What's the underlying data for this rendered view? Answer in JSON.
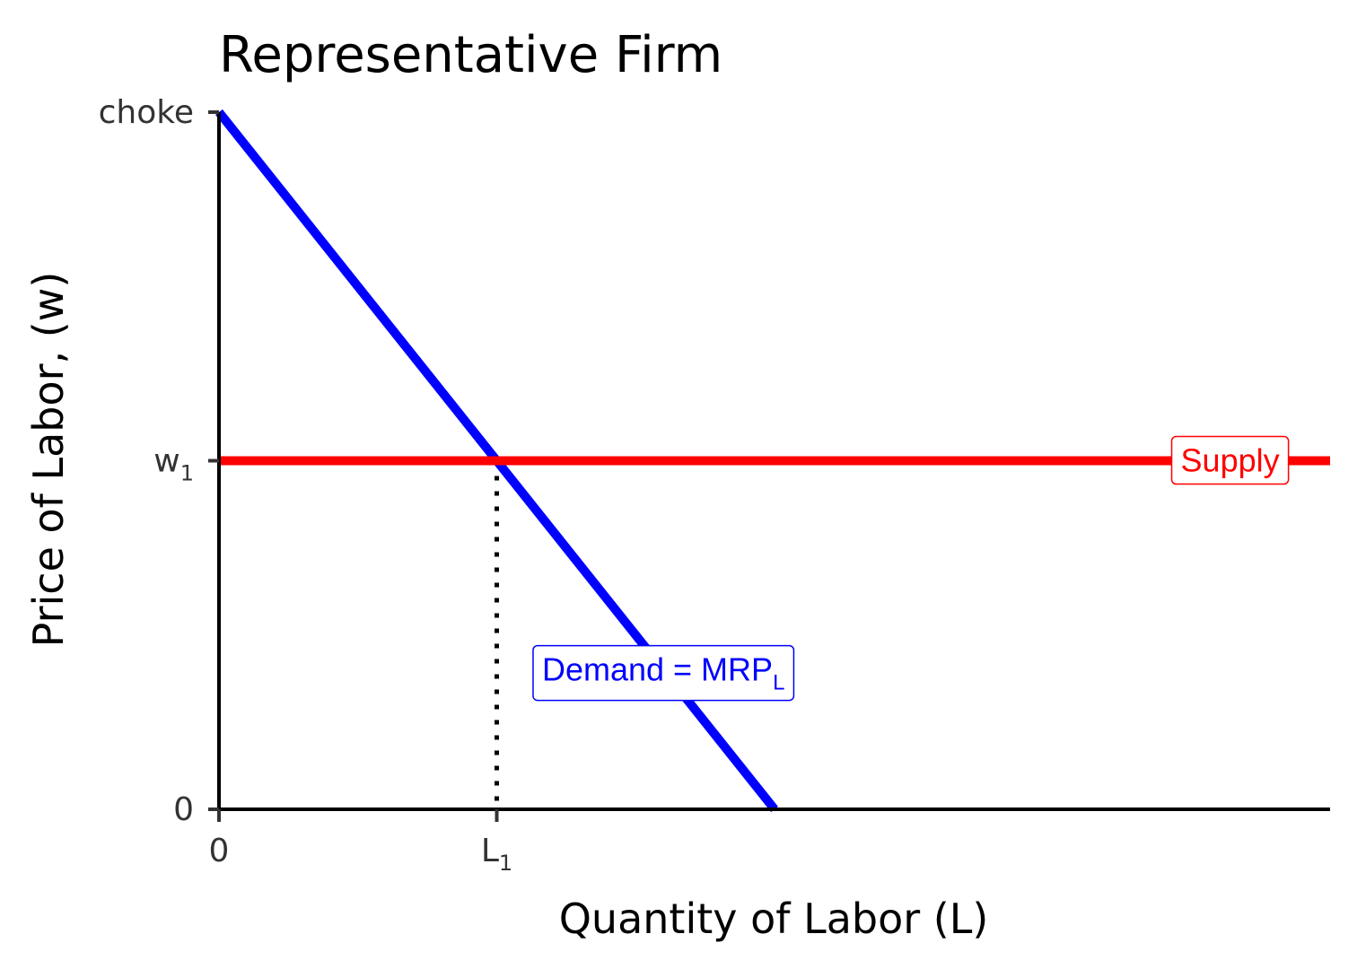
{
  "chart_data": {
    "type": "line",
    "title": "Representative Firm",
    "xlabel": "Quantity of Labor (L)",
    "ylabel": "Price of Labor, (w)",
    "xlim": [
      0,
      10
    ],
    "ylim": [
      0,
      10
    ],
    "x_ticks": [
      {
        "value": 0,
        "label": "0",
        "sub": ""
      },
      {
        "value": 2.5,
        "label": "L",
        "sub": "1"
      }
    ],
    "y_ticks": [
      {
        "value": 0,
        "label": "0",
        "sub": ""
      },
      {
        "value": 5,
        "label": "w",
        "sub": "1"
      },
      {
        "value": 10,
        "label": "choke",
        "sub": ""
      }
    ],
    "series": [
      {
        "name": "Supply",
        "color": "#ff0000",
        "points": [
          [
            0,
            5
          ],
          [
            10,
            5
          ]
        ],
        "label": {
          "text": "Supply",
          "sub": "",
          "at": [
            9.1,
            5
          ]
        }
      },
      {
        "name": "Demand = MRP",
        "color": "#0000ff",
        "points": [
          [
            0,
            10
          ],
          [
            5,
            0
          ]
        ],
        "label": {
          "text": "Demand = MRP",
          "sub": "L",
          "at": [
            4,
            2
          ]
        }
      }
    ],
    "guides": [
      {
        "from": [
          2.5,
          5
        ],
        "to": [
          2.5,
          0
        ],
        "style": "dotted",
        "color": "#000000"
      }
    ],
    "grid": false,
    "legend": "none"
  }
}
